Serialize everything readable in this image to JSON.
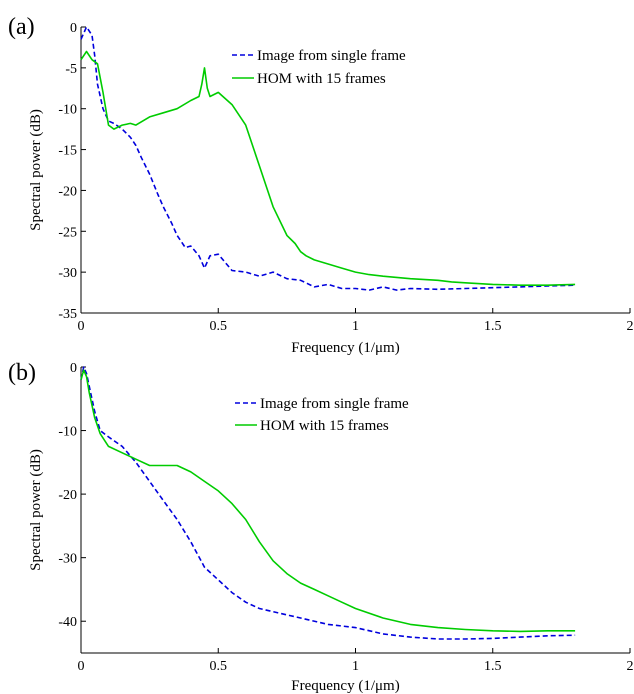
{
  "chart_data": [
    {
      "type": "line",
      "panel_label": "(a)",
      "xlabel": "Frequency (1/μm)",
      "ylabel": "Spectral power (dB)",
      "xlim": [
        0,
        2
      ],
      "ylim": [
        -35,
        0
      ],
      "xticks": [
        0,
        0.5,
        1,
        1.5,
        2
      ],
      "xtick_labels": [
        "0",
        "0.5",
        "1",
        "1.5",
        "2"
      ],
      "yticks": [
        0,
        -5,
        -10,
        -15,
        -20,
        -25,
        -30,
        -35
      ],
      "ytick_labels": [
        "0",
        "-5",
        "-10",
        "-15",
        "-20",
        "-25",
        "-30",
        "-35"
      ],
      "grid": false,
      "legend": "top-right",
      "series": [
        {
          "name": "Image from single frame",
          "color": "#0000dd",
          "dash": "dashed",
          "x": [
            0.0,
            0.02,
            0.04,
            0.05,
            0.06,
            0.08,
            0.1,
            0.12,
            0.15,
            0.18,
            0.2,
            0.22,
            0.25,
            0.28,
            0.3,
            0.33,
            0.35,
            0.38,
            0.4,
            0.43,
            0.45,
            0.47,
            0.5,
            0.53,
            0.55,
            0.6,
            0.65,
            0.7,
            0.75,
            0.8,
            0.85,
            0.9,
            0.95,
            1.0,
            1.05,
            1.1,
            1.15,
            1.2,
            1.3,
            1.4,
            1.5,
            1.6,
            1.7,
            1.8
          ],
          "y": [
            -1.5,
            0.0,
            -1.0,
            -3.5,
            -7.0,
            -10.0,
            -11.5,
            -11.8,
            -12.5,
            -13.5,
            -14.5,
            -16.0,
            -18.0,
            -20.5,
            -22.0,
            -24.0,
            -25.5,
            -27.0,
            -26.8,
            -28.0,
            -29.5,
            -28.0,
            -27.8,
            -29.0,
            -29.8,
            -30.0,
            -30.5,
            -30.0,
            -30.8,
            -31.0,
            -31.8,
            -31.5,
            -32.0,
            -32.0,
            -32.2,
            -31.8,
            -32.2,
            -32.0,
            -32.1,
            -32.0,
            -31.9,
            -31.8,
            -31.7,
            -31.6
          ]
        },
        {
          "name": "HOM with 15 frames",
          "color": "#00cc00",
          "dash": "solid",
          "x": [
            0.0,
            0.02,
            0.04,
            0.06,
            0.08,
            0.1,
            0.12,
            0.15,
            0.18,
            0.2,
            0.25,
            0.3,
            0.35,
            0.4,
            0.43,
            0.44,
            0.45,
            0.46,
            0.47,
            0.5,
            0.55,
            0.6,
            0.65,
            0.7,
            0.75,
            0.78,
            0.8,
            0.82,
            0.85,
            0.9,
            0.95,
            1.0,
            1.05,
            1.1,
            1.2,
            1.3,
            1.35,
            1.4,
            1.5,
            1.6,
            1.7,
            1.8
          ],
          "y": [
            -4.0,
            -3.0,
            -4.0,
            -4.5,
            -8.0,
            -12.0,
            -12.5,
            -12.0,
            -11.8,
            -12.0,
            -11.0,
            -10.5,
            -10.0,
            -9.0,
            -8.5,
            -7.0,
            -5.0,
            -7.5,
            -8.5,
            -8.0,
            -9.5,
            -12.0,
            -17.0,
            -22.0,
            -25.5,
            -26.5,
            -27.5,
            -28.0,
            -28.5,
            -29.0,
            -29.5,
            -30.0,
            -30.3,
            -30.5,
            -30.8,
            -31.0,
            -31.2,
            -31.3,
            -31.5,
            -31.6,
            -31.6,
            -31.5
          ]
        }
      ]
    },
    {
      "type": "line",
      "panel_label": "(b)",
      "xlabel": "Frequency (1/μm)",
      "ylabel": "Spectral power (dB)",
      "xlim": [
        0,
        2
      ],
      "ylim": [
        -45,
        0
      ],
      "xticks": [
        0,
        0.5,
        1,
        1.5,
        2
      ],
      "xtick_labels": [
        "0",
        "0.5",
        "1",
        "1.5",
        "2"
      ],
      "yticks": [
        0,
        -10,
        -20,
        -30,
        -40
      ],
      "ytick_labels": [
        "0",
        "-10",
        "-20",
        "-30",
        "-40"
      ],
      "grid": false,
      "legend": "top-right",
      "series": [
        {
          "name": "Image from single frame",
          "color": "#0000dd",
          "dash": "dashed",
          "x": [
            0.0,
            0.01,
            0.02,
            0.03,
            0.05,
            0.07,
            0.1,
            0.15,
            0.2,
            0.25,
            0.3,
            0.35,
            0.4,
            0.45,
            0.5,
            0.55,
            0.6,
            0.65,
            0.7,
            0.75,
            0.8,
            0.9,
            1.0,
            1.1,
            1.2,
            1.3,
            1.4,
            1.5,
            1.6,
            1.7,
            1.8
          ],
          "y": [
            -2.0,
            0.0,
            -1.0,
            -3.0,
            -7.0,
            -10.0,
            -11.0,
            -12.5,
            -15.0,
            -18.0,
            -21.0,
            -24.0,
            -27.5,
            -31.5,
            -33.5,
            -35.5,
            -37.0,
            -38.0,
            -38.5,
            -39.0,
            -39.5,
            -40.5,
            -41.0,
            -42.0,
            -42.5,
            -42.8,
            -42.8,
            -42.7,
            -42.5,
            -42.3,
            -42.2
          ]
        },
        {
          "name": "HOM with 15 frames",
          "color": "#00cc00",
          "dash": "solid",
          "x": [
            0.0,
            0.01,
            0.02,
            0.03,
            0.05,
            0.07,
            0.1,
            0.15,
            0.2,
            0.25,
            0.3,
            0.35,
            0.4,
            0.45,
            0.5,
            0.55,
            0.6,
            0.65,
            0.7,
            0.75,
            0.8,
            0.85,
            0.9,
            0.95,
            1.0,
            1.1,
            1.2,
            1.3,
            1.4,
            1.5,
            1.6,
            1.7,
            1.8
          ],
          "y": [
            -2.0,
            -0.5,
            -1.5,
            -4.0,
            -8.0,
            -10.5,
            -12.5,
            -13.5,
            -14.5,
            -15.5,
            -15.5,
            -15.5,
            -16.5,
            -18.0,
            -19.5,
            -21.5,
            -24.0,
            -27.5,
            -30.5,
            -32.5,
            -34.0,
            -35.0,
            -36.0,
            -37.0,
            -38.0,
            -39.5,
            -40.5,
            -41.0,
            -41.3,
            -41.5,
            -41.6,
            -41.5,
            -41.5
          ]
        }
      ]
    }
  ]
}
